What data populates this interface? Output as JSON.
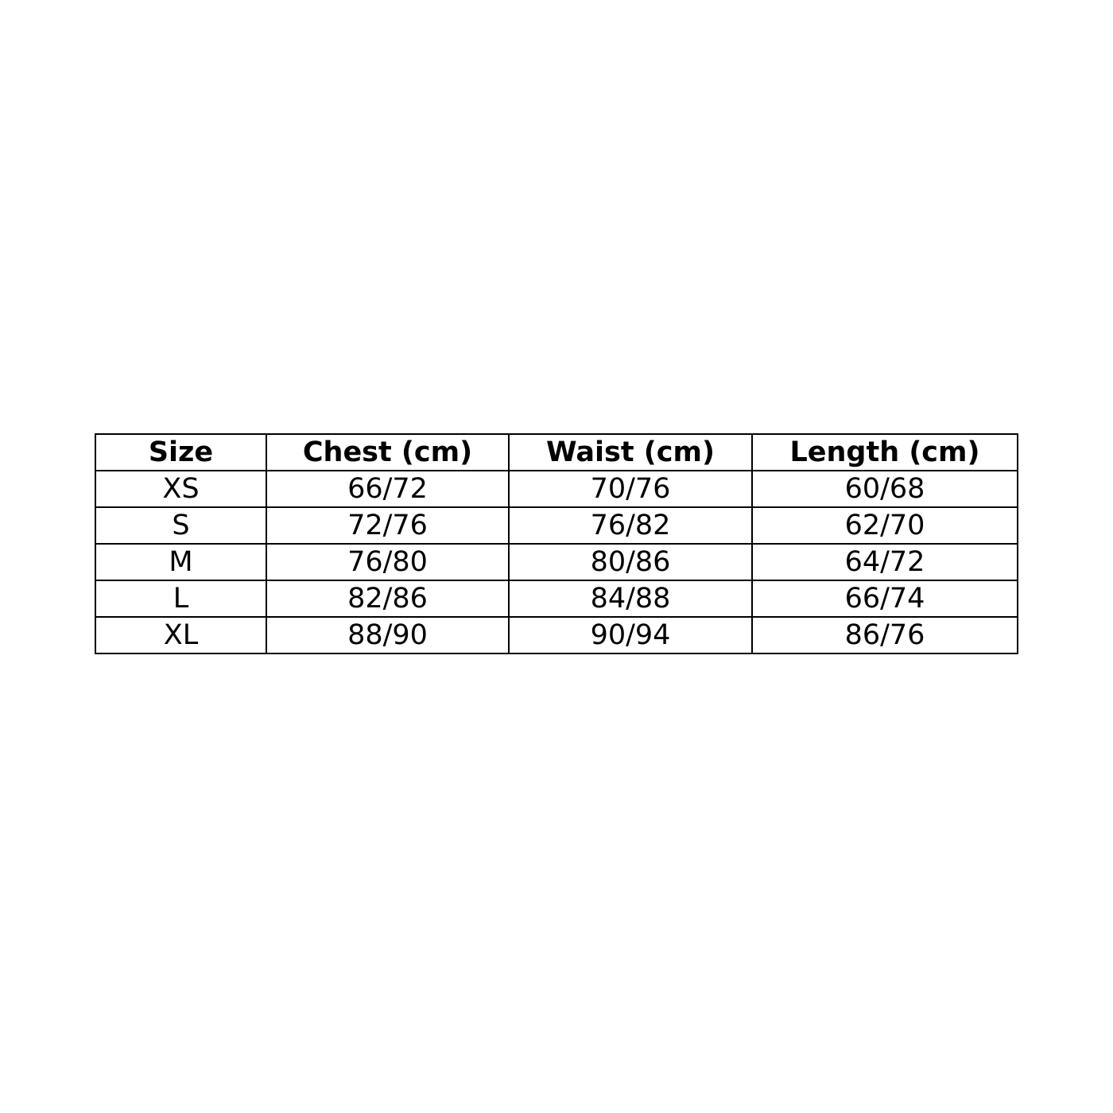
{
  "size_chart": {
    "headers": [
      "Size",
      "Chest (cm)",
      "Waist (cm)",
      "Length (cm)"
    ],
    "rows": [
      [
        "XS",
        "66/72",
        "70/76",
        "60/68"
      ],
      [
        "S",
        "72/76",
        "76/82",
        "62/70"
      ],
      [
        "M",
        "76/80",
        "80/86",
        "64/72"
      ],
      [
        "L",
        "82/86",
        "84/88",
        "66/74"
      ],
      [
        "XL",
        "88/90",
        "90/94",
        "86/76"
      ]
    ]
  }
}
